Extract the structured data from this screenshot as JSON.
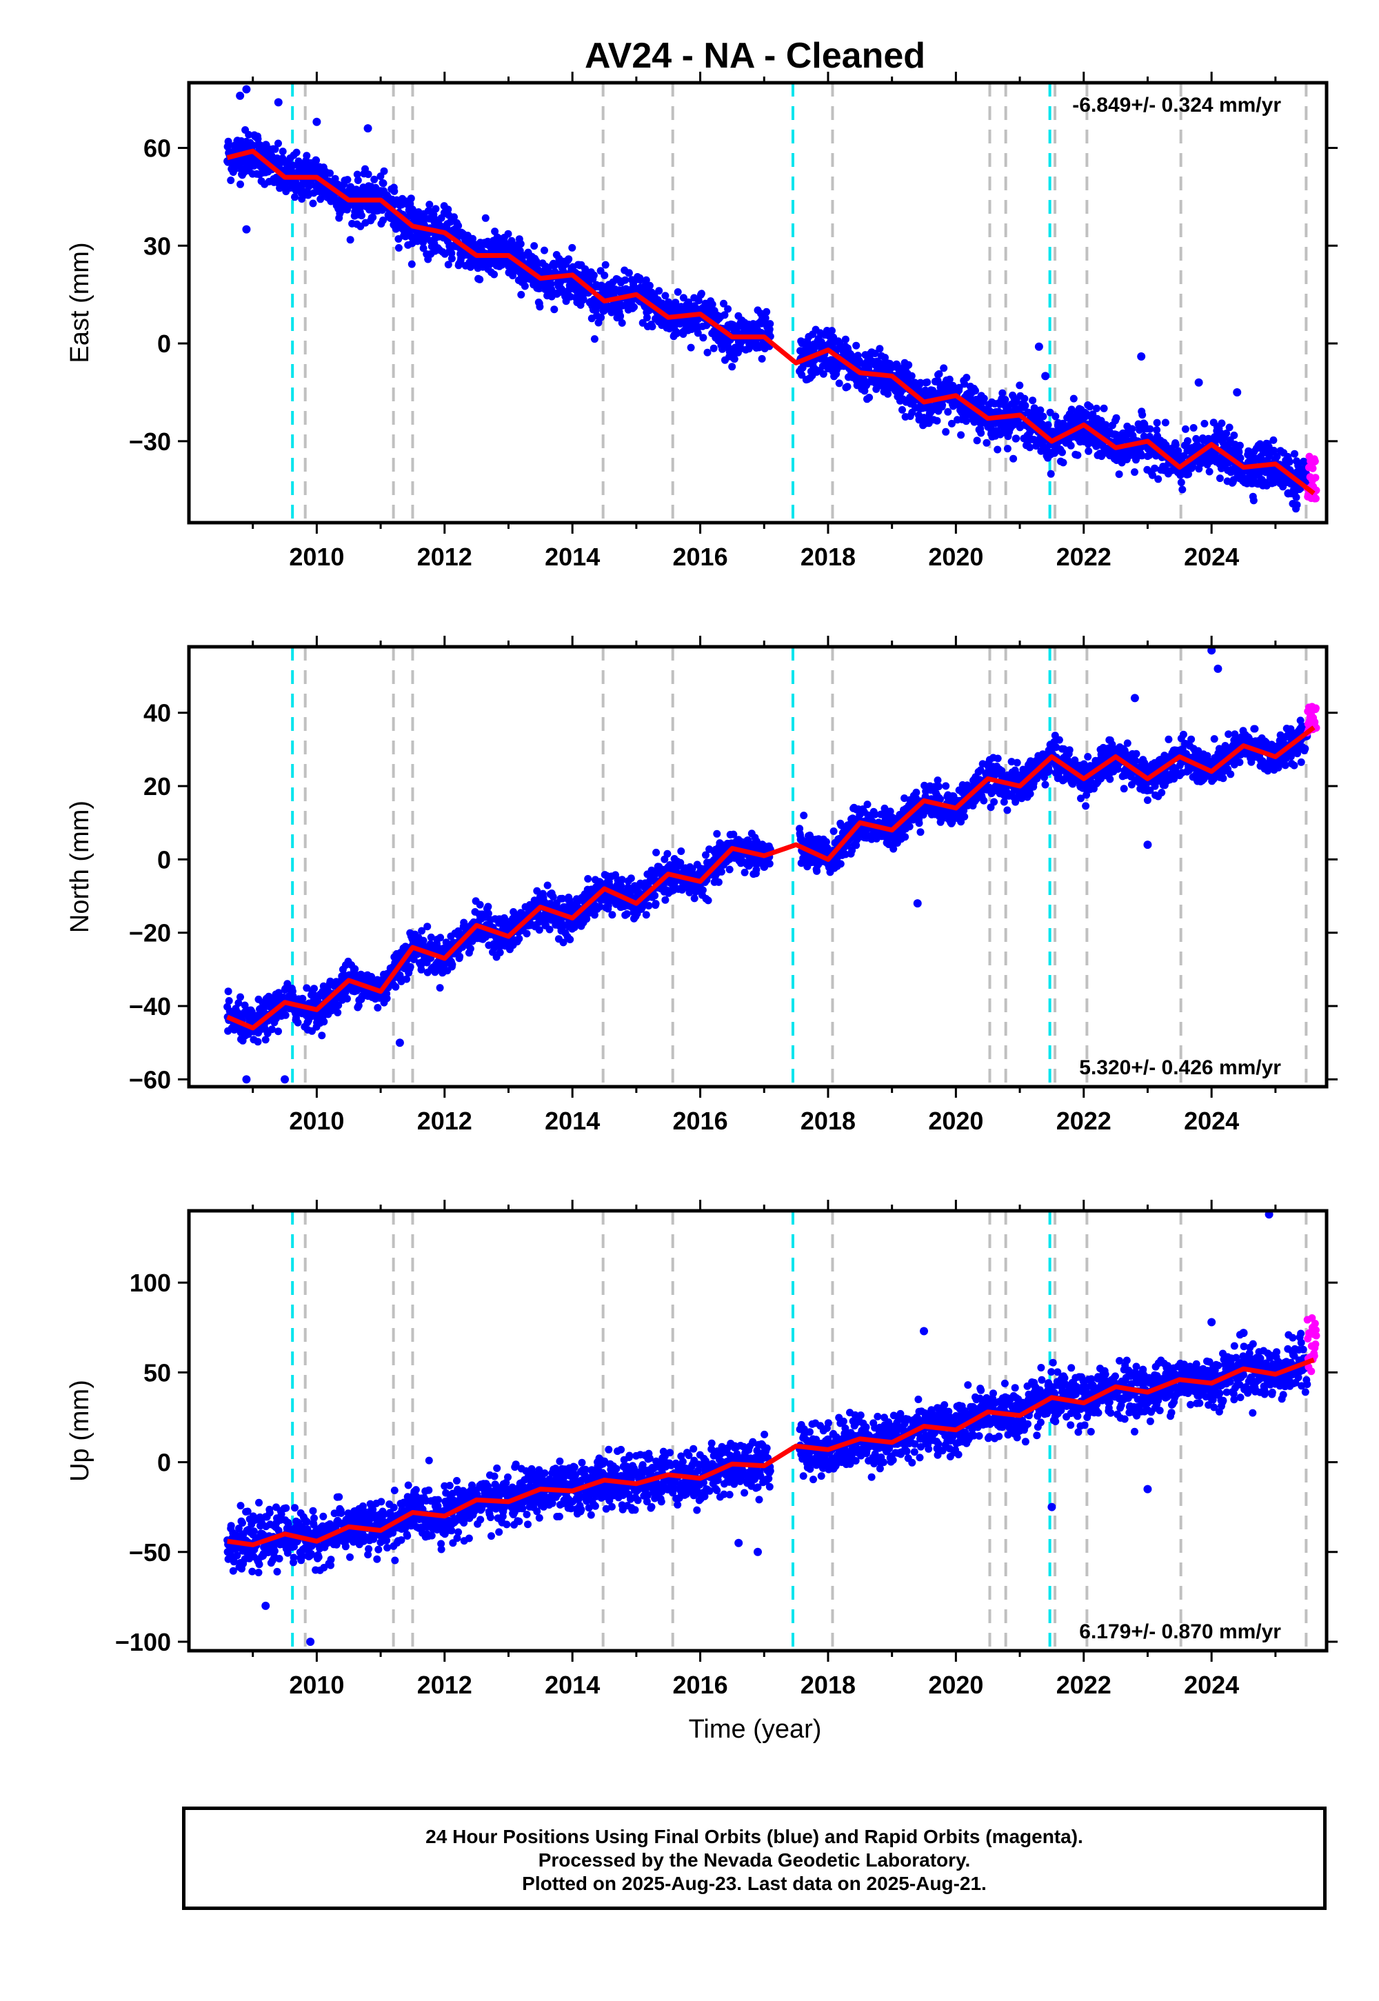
{
  "figure": {
    "title": "AV24  - NA - Cleaned",
    "xlabel": "Time (year)",
    "footer_lines": [
      "24 Hour Positions Using Final Orbits (blue) and Rapid Orbits (magenta).",
      "Processed by the Nevada Geodetic Laboratory.",
      "Plotted on 2025-Aug-23. Last data on 2025-Aug-21."
    ],
    "colors": {
      "final_orbits": "#0000ff",
      "rapid_orbits": "#ff00ff",
      "model": "#ff0000",
      "steps_cyan": "#00e5ee",
      "steps_gray": "#c0c0c0"
    }
  },
  "chart_data": [
    {
      "type": "scatter",
      "component": "east",
      "ylabel": "East (mm)",
      "rate_label": "-6.849+/- 0.324 mm/yr",
      "rate_position": "top-right",
      "xlim": [
        2008.0,
        2025.8
      ],
      "ylim": [
        -55,
        80
      ],
      "xticks": [
        2010,
        2012,
        2014,
        2016,
        2018,
        2020,
        2022,
        2024
      ],
      "yticks": [
        -30,
        0,
        30,
        60
      ],
      "series": [
        {
          "name": "Final Orbits (blue)",
          "x_range": [
            2008.6,
            2025.5
          ],
          "trend": "decreasing",
          "scatter_mm": 3.5
        },
        {
          "name": "Rapid Orbits (magenta)",
          "x_range": [
            2025.5,
            2025.64
          ],
          "values_range": [
            -48,
            -34
          ]
        },
        {
          "name": "model",
          "x": [
            2008.6,
            2009.0,
            2009.5,
            2010.0,
            2010.5,
            2011.0,
            2011.5,
            2012.0,
            2012.5,
            2013.0,
            2013.5,
            2014.0,
            2014.5,
            2015.0,
            2015.5,
            2016.0,
            2016.5,
            2017.0,
            2017.5,
            2018.0,
            2018.5,
            2019.0,
            2019.5,
            2020.0,
            2020.5,
            2021.0,
            2021.5,
            2022.0,
            2022.5,
            2023.0,
            2023.5,
            2024.0,
            2024.5,
            2025.0,
            2025.6
          ],
          "values": [
            57,
            59,
            51,
            51,
            44,
            44,
            36,
            34,
            27,
            27,
            20,
            21,
            13,
            15,
            8,
            9,
            2,
            2,
            -6,
            -2,
            -9,
            -10,
            -18,
            -16,
            -23,
            -22,
            -30,
            -25,
            -32,
            -30,
            -38,
            -31,
            -38,
            -37,
            -46
          ]
        }
      ],
      "outliers": [
        [
          2008.8,
          76
        ],
        [
          2008.9,
          78
        ],
        [
          2008.9,
          35
        ],
        [
          2009.4,
          74
        ],
        [
          2010.0,
          68
        ],
        [
          2010.8,
          66
        ],
        [
          2012.0,
          40
        ],
        [
          2021.3,
          -1
        ],
        [
          2021.4,
          -10
        ],
        [
          2022.9,
          -4
        ],
        [
          2023.8,
          -12
        ],
        [
          2024.4,
          -15
        ],
        [
          2025.2,
          -46
        ]
      ]
    },
    {
      "type": "scatter",
      "component": "north",
      "ylabel": "North (mm)",
      "rate_label": "5.320+/- 0.426 mm/yr",
      "rate_position": "bottom-right",
      "xlim": [
        2008.0,
        2025.8
      ],
      "ylim": [
        -62,
        58
      ],
      "xticks": [
        2010,
        2012,
        2014,
        2016,
        2018,
        2020,
        2022,
        2024
      ],
      "yticks": [
        -60,
        -40,
        -20,
        0,
        20,
        40
      ],
      "series": [
        {
          "name": "Final Orbits (blue)",
          "x_range": [
            2008.6,
            2025.5
          ],
          "trend": "increasing",
          "scatter_mm": 2.5
        },
        {
          "name": "Rapid Orbits (magenta)",
          "x_range": [
            2025.5,
            2025.64
          ],
          "values_range": [
            33,
            42
          ]
        },
        {
          "name": "model",
          "x": [
            2008.6,
            2009.0,
            2009.5,
            2010.0,
            2010.5,
            2011.0,
            2011.5,
            2012.0,
            2012.5,
            2013.0,
            2013.5,
            2014.0,
            2014.5,
            2015.0,
            2015.5,
            2016.0,
            2016.5,
            2017.0,
            2017.5,
            2018.0,
            2018.5,
            2019.0,
            2019.5,
            2020.0,
            2020.5,
            2021.0,
            2021.5,
            2022.0,
            2022.5,
            2023.0,
            2023.5,
            2024.0,
            2024.5,
            2025.0,
            2025.6
          ],
          "values": [
            -43,
            -46,
            -39,
            -41,
            -33,
            -36,
            -24,
            -27,
            -18,
            -21,
            -13,
            -16,
            -8,
            -12,
            -4,
            -6,
            3,
            1,
            4,
            0,
            10,
            8,
            16,
            14,
            22,
            20,
            28,
            22,
            28,
            22,
            28,
            24,
            31,
            28,
            36
          ]
        }
      ],
      "outliers": [
        [
          2008.9,
          -60
        ],
        [
          2009.5,
          -60
        ],
        [
          2011.3,
          -50
        ],
        [
          2017.0,
          -2
        ],
        [
          2019.4,
          -12
        ],
        [
          2022.8,
          44
        ],
        [
          2023.0,
          4
        ],
        [
          2024.0,
          57
        ],
        [
          2024.1,
          52
        ]
      ]
    },
    {
      "type": "scatter",
      "component": "up",
      "ylabel": "Up (mm)",
      "rate_label": "6.179+/- 0.870 mm/yr",
      "rate_position": "bottom-right",
      "xlim": [
        2008.0,
        2025.8
      ],
      "ylim": [
        -105,
        140
      ],
      "xticks": [
        2010,
        2012,
        2014,
        2016,
        2018,
        2020,
        2022,
        2024
      ],
      "yticks": [
        -100,
        -50,
        0,
        50,
        100
      ],
      "series": [
        {
          "name": "Final Orbits (blue)",
          "x_range": [
            2008.6,
            2025.5
          ],
          "trend": "increasing",
          "scatter_mm": 7
        },
        {
          "name": "Rapid Orbits (magenta)",
          "x_range": [
            2025.5,
            2025.64
          ],
          "values_range": [
            50,
            82
          ]
        },
        {
          "name": "model",
          "x": [
            2008.6,
            2009.0,
            2009.5,
            2010.0,
            2010.5,
            2011.0,
            2011.5,
            2012.0,
            2012.5,
            2013.0,
            2013.5,
            2014.0,
            2014.5,
            2015.0,
            2015.5,
            2016.0,
            2016.5,
            2017.0,
            2017.5,
            2018.0,
            2018.5,
            2019.0,
            2019.5,
            2020.0,
            2020.5,
            2021.0,
            2021.5,
            2022.0,
            2022.5,
            2023.0,
            2023.5,
            2024.0,
            2024.5,
            2025.0,
            2025.6
          ],
          "values": [
            -44,
            -46,
            -40,
            -44,
            -36,
            -38,
            -28,
            -30,
            -21,
            -22,
            -15,
            -16,
            -10,
            -12,
            -7,
            -9,
            -1,
            -2,
            9,
            7,
            13,
            11,
            20,
            18,
            28,
            26,
            36,
            33,
            42,
            39,
            46,
            44,
            52,
            49,
            57
          ]
        }
      ],
      "outliers": [
        [
          2009.2,
          -80
        ],
        [
          2009.9,
          -100
        ],
        [
          2016.6,
          -45
        ],
        [
          2016.9,
          -50
        ],
        [
          2019.5,
          73
        ],
        [
          2021.5,
          -25
        ],
        [
          2023.0,
          -15
        ],
        [
          2024.0,
          78
        ],
        [
          2024.5,
          72
        ],
        [
          2024.9,
          138
        ]
      ]
    }
  ],
  "step_lines": {
    "cyan": [
      2009.62,
      2017.45,
      2021.47
    ],
    "gray": [
      2009.82,
      2011.2,
      2011.5,
      2014.48,
      2015.57,
      2018.07,
      2020.53,
      2020.78,
      2021.55,
      2022.05,
      2023.52,
      2025.48
    ]
  }
}
